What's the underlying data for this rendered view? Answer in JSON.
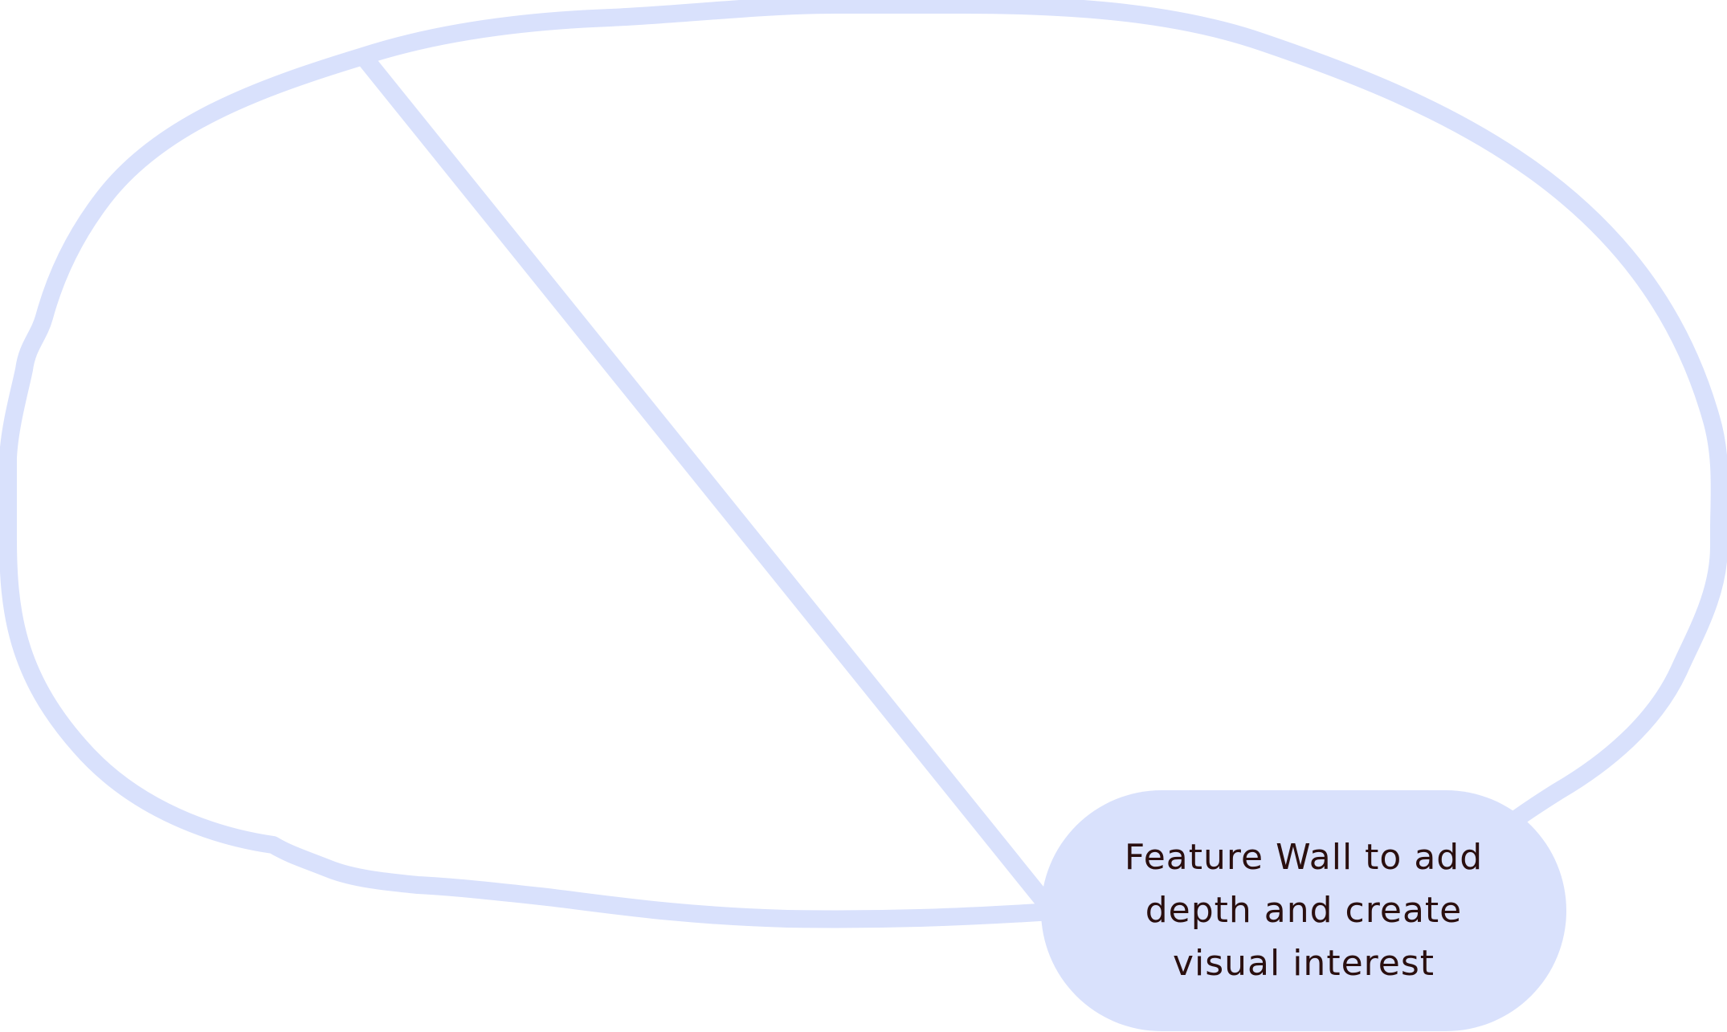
{
  "colors": {
    "background": "#ffffff",
    "outline": "#d9e1fc",
    "callout_fill": "#d9e1fc",
    "callout_text": "#2a0f0f"
  },
  "diagram": {
    "shape": "freeform-region-outline",
    "callout": {
      "label": "Feature Wall to add\ndepth and create\nvisual interest"
    }
  }
}
